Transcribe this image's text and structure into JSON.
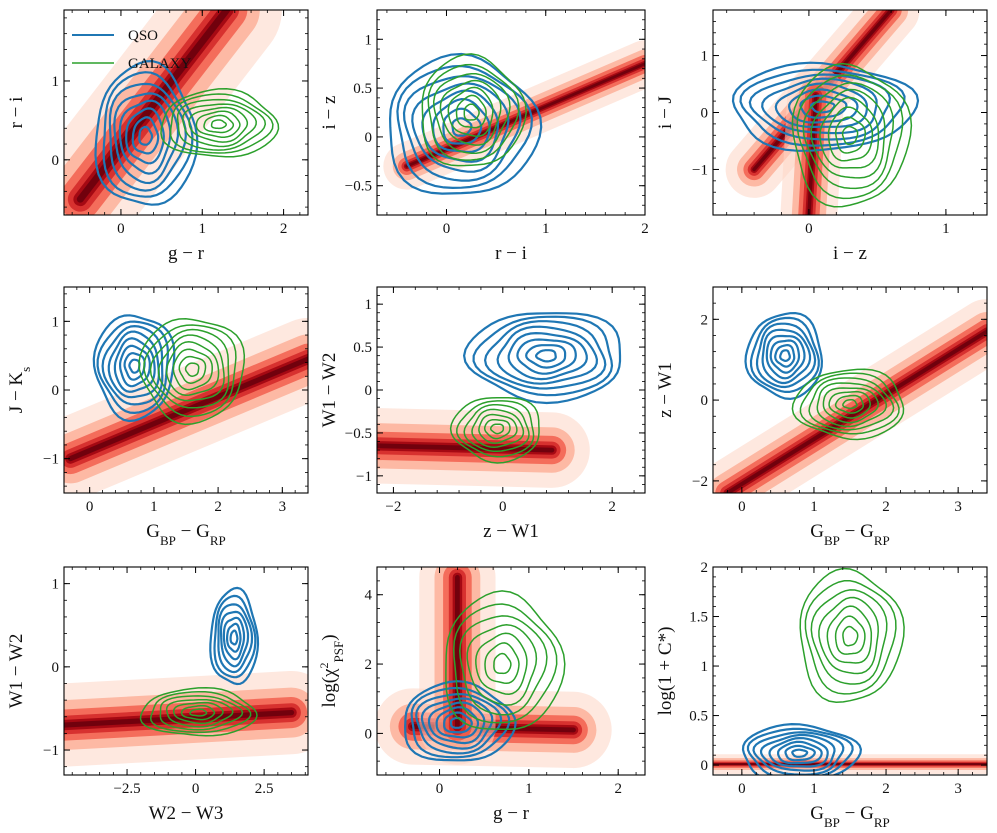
{
  "colors": {
    "qso": "#1f77b4",
    "galaxy": "#2ca02c",
    "star_density": [
      "#fff5f0",
      "#fdd5c4",
      "#fc9272",
      "#ef3b2c",
      "#cb181d",
      "#99000d",
      "#67000d"
    ]
  },
  "legend": {
    "qso": "QSO",
    "galaxy": "GALAXY"
  },
  "chart_data": [
    {
      "type": "contour",
      "title": "",
      "xlabel": "g − r",
      "ylabel": "r − i",
      "xlim": [
        -0.7,
        2.3
      ],
      "ylim": [
        -0.7,
        1.9
      ],
      "xticks": [
        0,
        1,
        2
      ],
      "yticks": [
        0,
        1
      ],
      "background": {
        "name": "star density",
        "segments": [
          [
            -0.5,
            -0.5,
            1.3,
            1.9
          ]
        ],
        "width": 0.35
      },
      "series": [
        {
          "name": "QSO",
          "center": [
            0.3,
            0.3
          ],
          "radii": [
            0.65,
            0.95
          ],
          "levels": 8
        },
        {
          "name": "GALAXY",
          "center": [
            1.2,
            0.45
          ],
          "radii": [
            0.75,
            0.45
          ],
          "levels": 8
        }
      ]
    },
    {
      "type": "contour",
      "title": "",
      "xlabel": "r − i",
      "ylabel": "i − z",
      "xlim": [
        -0.7,
        2.0
      ],
      "ylim": [
        -0.8,
        1.3
      ],
      "xticks": [
        0,
        1,
        2
      ],
      "yticks": [
        -0.5,
        0.0,
        0.5,
        1.0
      ],
      "background": {
        "name": "star density",
        "segments": [
          [
            -0.4,
            -0.3,
            2.0,
            0.75
          ]
        ],
        "width": 0.12
      },
      "series": [
        {
          "name": "QSO",
          "center": [
            0.15,
            0.1
          ],
          "radii": [
            0.8,
            0.75
          ],
          "levels": 8
        },
        {
          "name": "GALAXY",
          "center": [
            0.25,
            0.25
          ],
          "radii": [
            0.55,
            0.6
          ],
          "levels": 7
        }
      ]
    },
    {
      "type": "contour",
      "title": "",
      "xlabel": "i − z",
      "ylabel": "i − J",
      "xlim": [
        -0.7,
        1.3
      ],
      "ylim": [
        -1.8,
        1.8
      ],
      "xticks": [
        0,
        1
      ],
      "yticks": [
        -1,
        0,
        1
      ],
      "background": {
        "name": "star density",
        "segments": [
          [
            -0.4,
            -1.0,
            0.6,
            1.8
          ],
          [
            0.0,
            -1.8,
            0.05,
            0.3
          ]
        ],
        "width": 0.25
      },
      "series": [
        {
          "name": "QSO",
          "center": [
            0.1,
            0.1
          ],
          "radii": [
            0.7,
            0.8
          ],
          "levels": 8
        },
        {
          "name": "GALAXY",
          "center": [
            0.3,
            -0.4
          ],
          "radii": [
            0.45,
            1.3
          ],
          "levels": 8
        }
      ]
    },
    {
      "type": "contour",
      "title": "",
      "xlabel": "G_BP − G_RP",
      "ylabel": "J − K_s",
      "xlim": [
        -0.4,
        3.4
      ],
      "ylim": [
        -1.5,
        1.5
      ],
      "xticks": [
        0,
        1,
        2,
        3
      ],
      "yticks": [
        -1,
        0,
        1
      ],
      "background": {
        "name": "star density",
        "segments": [
          [
            -0.3,
            -1.0,
            3.4,
            0.45
          ]
        ],
        "width": 0.3
      },
      "series": [
        {
          "name": "QSO",
          "center": [
            0.7,
            0.35
          ],
          "radii": [
            0.65,
            0.8
          ],
          "levels": 8
        },
        {
          "name": "GALAXY",
          "center": [
            1.6,
            0.3
          ],
          "radii": [
            0.85,
            0.8
          ],
          "levels": 8
        }
      ]
    },
    {
      "type": "contour",
      "title": "",
      "xlabel": "z − W1",
      "ylabel": "W1 − W2",
      "xlim": [
        -2.3,
        2.6
      ],
      "ylim": [
        -1.2,
        1.2
      ],
      "xticks": [
        -2,
        0,
        2
      ],
      "yticks": [
        -1.0,
        -0.5,
        0.0,
        0.5,
        1.0
      ],
      "background": {
        "name": "star density",
        "segments": [
          [
            -2.3,
            -0.65,
            0.9,
            -0.7
          ]
        ],
        "width": 0.22
      },
      "series": [
        {
          "name": "QSO",
          "center": [
            0.8,
            0.4
          ],
          "radii": [
            1.5,
            0.55
          ],
          "levels": 8
        },
        {
          "name": "GALAXY",
          "center": [
            -0.1,
            -0.45
          ],
          "radii": [
            0.85,
            0.4
          ],
          "levels": 7
        }
      ]
    },
    {
      "type": "contour",
      "title": "",
      "xlabel": "G_BP − G_RP",
      "ylabel": "z − W1",
      "xlim": [
        -0.4,
        3.4
      ],
      "ylim": [
        -2.3,
        2.8
      ],
      "xticks": [
        0,
        1,
        2,
        3
      ],
      "yticks": [
        -2,
        0,
        2
      ],
      "background": {
        "name": "star density",
        "segments": [
          [
            -0.2,
            -2.3,
            3.4,
            1.7
          ]
        ],
        "width": 0.4
      },
      "series": [
        {
          "name": "QSO",
          "center": [
            0.6,
            1.1
          ],
          "radii": [
            0.55,
            1.1
          ],
          "levels": 8
        },
        {
          "name": "GALAXY",
          "center": [
            1.5,
            -0.1
          ],
          "radii": [
            0.8,
            0.9
          ],
          "levels": 8
        }
      ]
    },
    {
      "type": "contour",
      "title": "",
      "xlabel": "W2 − W3",
      "ylabel": "W1 − W2",
      "xlim": [
        -4.8,
        4.1
      ],
      "ylim": [
        -1.3,
        1.2
      ],
      "xticks": [
        -2.5,
        0.0,
        2.5
      ],
      "yticks": [
        -1,
        0,
        1
      ],
      "background": {
        "name": "star density",
        "segments": [
          [
            -4.8,
            -0.7,
            3.5,
            -0.55
          ]
        ],
        "width": 0.25
      },
      "series": [
        {
          "name": "QSO",
          "center": [
            1.4,
            0.35
          ],
          "radii": [
            0.9,
            0.6
          ],
          "levels": 7
        },
        {
          "name": "GALAXY",
          "center": [
            0.1,
            -0.55
          ],
          "radii": [
            2.2,
            0.3
          ],
          "levels": 7
        }
      ]
    },
    {
      "type": "contour",
      "title": "",
      "xlabel": "g − r",
      "ylabel": "log(χ²_PSF)",
      "xlim": [
        -0.7,
        2.3
      ],
      "ylim": [
        -1.2,
        4.8
      ],
      "xticks": [
        0,
        1,
        2
      ],
      "yticks": [
        0,
        2,
        4
      ],
      "background": {
        "name": "star density",
        "segments": [
          [
            -0.3,
            0.2,
            1.5,
            0.1
          ],
          [
            0.2,
            0.2,
            0.2,
            4.5
          ]
        ],
        "width": 0.55
      },
      "series": [
        {
          "name": "QSO",
          "center": [
            0.2,
            0.3
          ],
          "radii": [
            0.65,
            1.2
          ],
          "levels": 8
        },
        {
          "name": "GALAXY",
          "center": [
            0.7,
            2.0
          ],
          "radii": [
            0.7,
            2.1
          ],
          "levels": 7
        }
      ]
    },
    {
      "type": "contour",
      "title": "",
      "xlabel": "G_BP − G_RP",
      "ylabel": "log(1 + C*)",
      "xlim": [
        -0.4,
        3.4
      ],
      "ylim": [
        -0.1,
        2.0
      ],
      "xticks": [
        0,
        1,
        2,
        3
      ],
      "yticks": [
        0.0,
        0.5,
        1.0,
        1.5,
        2.0
      ],
      "background": {
        "name": "star density",
        "segments": [
          [
            -0.4,
            0.01,
            3.4,
            0.01
          ]
        ],
        "width": 0.05
      },
      "series": [
        {
          "name": "QSO",
          "center": [
            0.8,
            0.12
          ],
          "radii": [
            0.85,
            0.3
          ],
          "levels": 8
        },
        {
          "name": "GALAXY",
          "center": [
            1.5,
            1.3
          ],
          "radii": [
            0.75,
            0.7
          ],
          "levels": 7
        }
      ]
    }
  ]
}
